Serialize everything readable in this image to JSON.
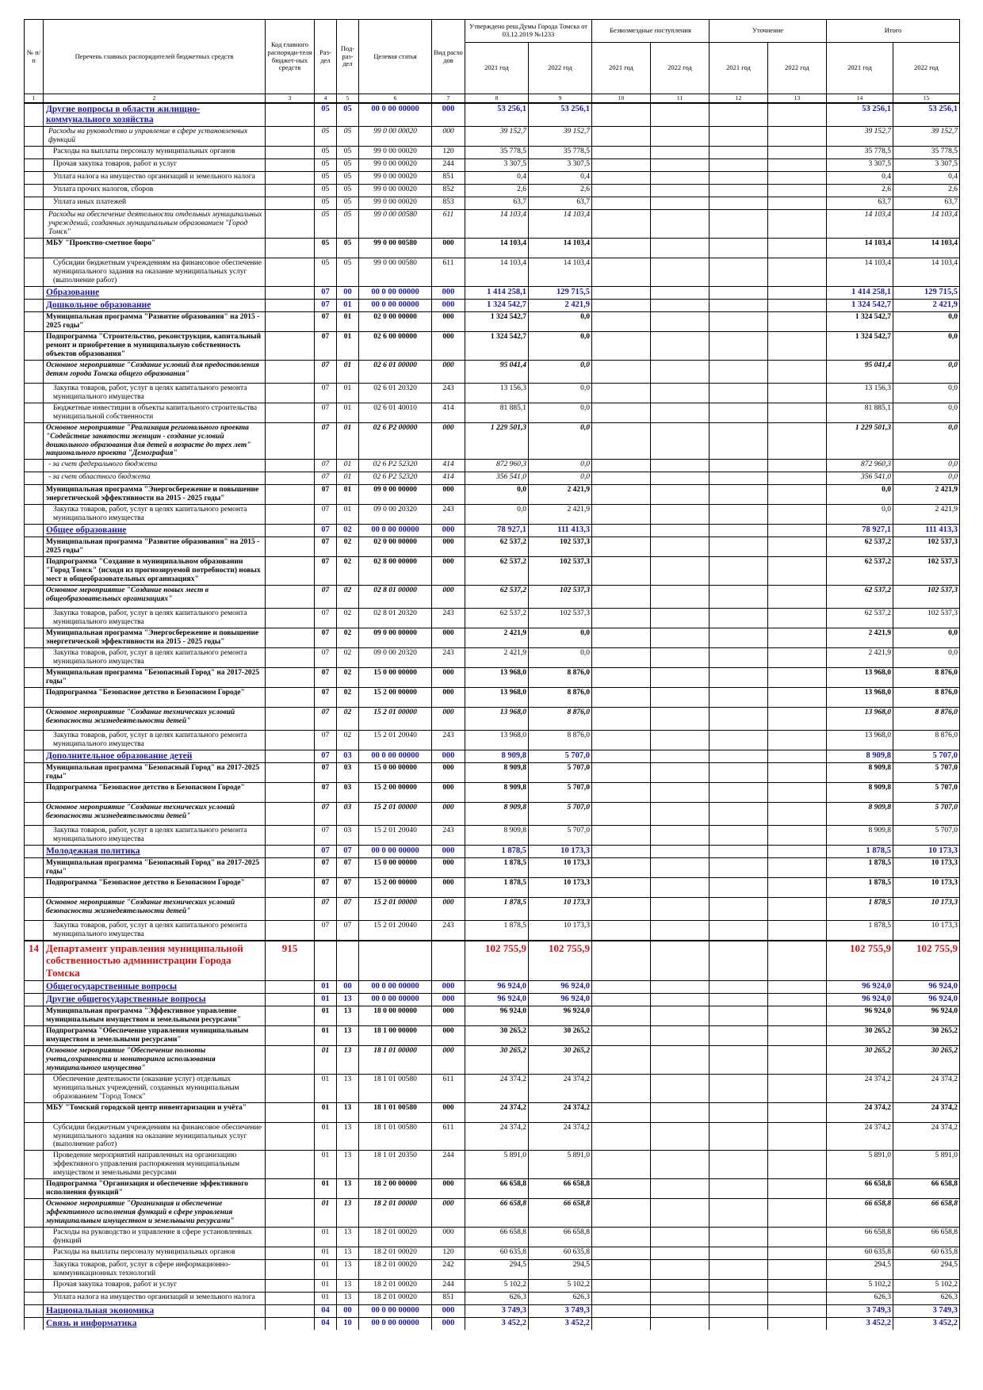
{
  "table": {
    "header": {
      "num": "№ п/п",
      "name": "Перечень главных распорядителей бюджетных средств",
      "code": "Код главного распоряди-теля бюджет-ных средств",
      "razdel": "Раз-дел",
      "podrazdel": "Под-раз-дел",
      "target": "Целевая статья",
      "vid": "Вид расхо дов",
      "groups": [
        "Утверждено реш.Думы Города Томска от 03.12.2019 №1233",
        "Безвозмездные поступления",
        "Уточнение",
        "Итого"
      ],
      "years": [
        "2021 год",
        "2022 год",
        "2021 год",
        "2022 год",
        "2021 год",
        "2022 год",
        "2021 год",
        "2022 год"
      ]
    },
    "column_numbers": [
      1,
      2,
      3,
      4,
      5,
      6,
      7,
      8,
      9,
      10,
      11,
      12,
      13,
      14,
      15
    ],
    "row_styles": [
      "section",
      "italic",
      "plain",
      "plain",
      "plain",
      "plain",
      "plain",
      "italic",
      "bold",
      "plain",
      "section",
      "section",
      "bold",
      "bold",
      "bold-italic",
      "plain",
      "plain",
      "bold-italic",
      "italic",
      "italic",
      "bold",
      "plain",
      "section",
      "bold",
      "bold",
      "bold-italic",
      "plain",
      "bold",
      "plain",
      "bold",
      "bold",
      "bold-italic",
      "plain",
      "section",
      "bold",
      "bold",
      "bold-italic",
      "plain",
      "section",
      "bold",
      "bold",
      "bold-italic",
      "plain",
      "dept",
      "section",
      "section",
      "bold",
      "bold",
      "bold-italic",
      "plain",
      "bold",
      "plain",
      "plain",
      "bold",
      "bold-italic",
      "plain",
      "plain",
      "plain",
      "plain",
      "plain",
      "section",
      "section"
    ],
    "rows": [
      [
        null,
        "Другие вопросы в области жилищно-коммунального хозяйства",
        null,
        "05",
        "05",
        "00 0 00 00000",
        "000",
        "53 256,1",
        "53 256,1",
        "53 256,1",
        "53 256,1"
      ],
      [
        null,
        "Расходы на руководство и управление в сфере установленных функций",
        null,
        "05",
        "05",
        "99 0 00 00020",
        "000",
        "39 152,7",
        "39 152,7",
        "39 152,7",
        "39 152,7"
      ],
      [
        null,
        "Расходы на выплаты персоналу муниципальных органов",
        null,
        "05",
        "05",
        "99 0 00 00020",
        "120",
        "35 778,5",
        "35 778,5",
        "35 778,5",
        "35 778,5"
      ],
      [
        null,
        "Прочая закупка товаров, работ и услуг",
        null,
        "05",
        "05",
        "99 0 00 00020",
        "244",
        "3 307,5",
        "3 307,5",
        "3 307,5",
        "3 307,5"
      ],
      [
        null,
        "Уплата налога на имущество организаций и земельного налога",
        null,
        "05",
        "05",
        "99 0 00 00020",
        "851",
        "0,4",
        "0,4",
        "0,4",
        "0,4"
      ],
      [
        null,
        "Уплата прочих налогов, сборов",
        null,
        "05",
        "05",
        "99 0 00 00020",
        "852",
        "2,6",
        "2,6",
        "2,6",
        "2,6"
      ],
      [
        null,
        "Уплата иных платежей",
        null,
        "05",
        "05",
        "99 0 00 00020",
        "853",
        "63,7",
        "63,7",
        "63,7",
        "63,7"
      ],
      [
        null,
        "Расходы на обеспечение деятельности отдельных муниципальных учреждений, созданных муниципальным образованием \"Город Томск\"",
        null,
        "05",
        "05",
        "99 0 00 00580",
        "611",
        "14 103,4",
        "14 103,4",
        "14 103,4",
        "14 103,4"
      ],
      [
        null,
        "МБУ \"Проектно-сметное бюро\"",
        null,
        "05",
        "05",
        "99 0 00 00580",
        "000",
        "14 103,4",
        "14 103,4",
        "14 103,4",
        "14 103,4"
      ],
      [
        null,
        "Субсидии бюджетным учреждениям на финансовое обеспечение муниципального задания на оказание муниципальных услуг (выполнение работ)",
        null,
        "05",
        "05",
        "99 0 00 00580",
        "611",
        "14 103,4",
        "14 103,4",
        "14 103,4",
        "14 103,4"
      ],
      [
        null,
        "Образование",
        null,
        "07",
        "00",
        "00 0 00 00000",
        "000",
        "1 414 258,1",
        "129 715,5",
        "1 414 258,1",
        "129 715,5"
      ],
      [
        null,
        "Дошкольное образование",
        null,
        "07",
        "01",
        "00 0 00 00000",
        "000",
        "1 324 542,7",
        "2 421,9",
        "1 324 542,7",
        "2 421,9"
      ],
      [
        null,
        "Муниципальная программа \"Развитие образования\" на 2015 - 2025 годы\"",
        null,
        "07",
        "01",
        "02 0 00 00000",
        "000",
        "1 324 542,7",
        "0,0",
        "1 324 542,7",
        "0,0"
      ],
      [
        null,
        "Подпрограмма \"Строительство, реконструкция, капитальный ремонт и приобретение в муниципальную собственность объектов образования\"",
        null,
        "07",
        "01",
        "02 6 00 00000",
        "000",
        "1 324 542,7",
        "0,0",
        "1 324 542,7",
        "0,0"
      ],
      [
        null,
        "Основное мероприятие \"Создание условий для предоставления детям города Томска общего образования\"",
        null,
        "07",
        "01",
        "02 6 01 00000",
        "000",
        "95 041,4",
        "0,0",
        "95 041,4",
        "0,0"
      ],
      [
        null,
        "Закупка товаров, работ, услуг в целях капитального ремонта муниципального имущества",
        null,
        "07",
        "01",
        "02 6 01 20320",
        "243",
        "13 156,3",
        "0,0",
        "13 156,3",
        "0,0"
      ],
      [
        null,
        "Бюджетные инвестиции в объекты капитального строительства муниципальной собственности",
        null,
        "07",
        "01",
        "02 6 01 40010",
        "414",
        "81 885,1",
        "0,0",
        "81 885,1",
        "0,0"
      ],
      [
        null,
        "Основное мероприятие \"Реализация регионального проекта \"Содействие занятости женщин - создание условий дошкольного образования для детей в возрасте до трех лет\" национального проекта \"Демография\"",
        null,
        "07",
        "01",
        "02 6 P2 00000",
        "000",
        "1 229 501,3",
        "0,0",
        "1 229 501,3",
        "0,0"
      ],
      [
        null,
        "- за счет федерального бюджета",
        null,
        "07",
        "01",
        "02 6 P2 52320",
        "414",
        "872 960,3",
        "0,0",
        "872 960,3",
        "0,0"
      ],
      [
        null,
        "- за счет областного бюджета",
        null,
        "07",
        "01",
        "02 6 P2 52320",
        "414",
        "356 541,0",
        "0,0",
        "356 541,0",
        "0,0"
      ],
      [
        null,
        "Муниципальная программа \"Энергосбережение и повышение энергетической эффективности на 2015 - 2025 годы\"",
        null,
        "07",
        "01",
        "09 0 00 00000",
        "000",
        "0,0",
        "2 421,9",
        "0,0",
        "2 421,9"
      ],
      [
        null,
        "Закупка товаров, работ, услуг в целях капитального ремонта муниципального имущества",
        null,
        "07",
        "01",
        "09 0 00 20320",
        "243",
        "0,0",
        "2 421,9",
        "0,0",
        "2 421,9"
      ],
      [
        null,
        "Общее образование",
        null,
        "07",
        "02",
        "00 0 00 00000",
        "000",
        "78 927,1",
        "111 413,3",
        "78 927,1",
        "111 413,3"
      ],
      [
        null,
        "Муниципальная программа \"Развитие образования\" на 2015 - 2025 годы\"",
        null,
        "07",
        "02",
        "02 0 00 00000",
        "000",
        "62 537,2",
        "102 537,3",
        "62 537,2",
        "102 537,3"
      ],
      [
        null,
        "Подпрограмма \"Создание в муниципальном образовании \"Город Томск\" (исходя из прогнозируемой потребности) новых мест в общеобразовательных организациях\"",
        null,
        "07",
        "02",
        "02 8 00 00000",
        "000",
        "62 537,2",
        "102 537,3",
        "62 537,2",
        "102 537,3"
      ],
      [
        null,
        "Основное мероприятие \"Создание новых мест в общеобразовательных организациях\"",
        null,
        "07",
        "02",
        "02 8 01 00000",
        "000",
        "62 537,2",
        "102 537,3",
        "62 537,2",
        "102 537,3"
      ],
      [
        null,
        "Закупка товаров, работ, услуг в целях капитального ремонта муниципального имущества",
        null,
        "07",
        "02",
        "02 8 01 20320",
        "243",
        "62 537,2",
        "102 537,3",
        "62 537,2",
        "102 537,3"
      ],
      [
        null,
        "Муниципальная программа \"Энергосбережение и повышение энергетической эффективности на 2015 - 2025 годы\"",
        null,
        "07",
        "02",
        "09 0 00 00000",
        "000",
        "2 421,9",
        "0,0",
        "2 421,9",
        "0,0"
      ],
      [
        null,
        "Закупка товаров, работ, услуг в целях капитального ремонта муниципального имущества",
        null,
        "07",
        "02",
        "09 0 00 20320",
        "243",
        "2 421,9",
        "0,0",
        "2 421,9",
        "0,0"
      ],
      [
        null,
        "Муниципальная программа \"Безопасный Город\" на 2017-2025 годы\"",
        null,
        "07",
        "02",
        "15 0 00 00000",
        "000",
        "13 968,0",
        "8 876,0",
        "13 968,0",
        "8 876,0"
      ],
      [
        null,
        "Подпрограмма \"Безопасное детство в Безопасном Городе\"",
        null,
        "07",
        "02",
        "15 2 00 00000",
        "000",
        "13 968,0",
        "8 876,0",
        "13 968,0",
        "8 876,0"
      ],
      [
        null,
        "Основное мероприятие \"Создание технических условий безопасности жизнедеятельности детей\"",
        null,
        "07",
        "02",
        "15 2 01 00000",
        "000",
        "13 968,0",
        "8 876,0",
        "13 968,0",
        "8 876,0"
      ],
      [
        null,
        "Закупка товаров, работ, услуг в целях капитального ремонта муниципального имущества",
        null,
        "07",
        "02",
        "15 2 01 20040",
        "243",
        "13 968,0",
        "8 876,0",
        "13 968,0",
        "8 876,0"
      ],
      [
        null,
        "Дополнительное образование детей",
        null,
        "07",
        "03",
        "00 0 00 00000",
        "000",
        "8 909,8",
        "5 707,0",
        "8 909,8",
        "5 707,0"
      ],
      [
        null,
        "Муниципальная программа \"Безопасный Город\" на 2017-2025 годы\"",
        null,
        "07",
        "03",
        "15 0 00 00000",
        "000",
        "8 909,8",
        "5 707,0",
        "8 909,8",
        "5 707,0"
      ],
      [
        null,
        "Подпрограмма \"Безопасное детство в Безопасном Городе\"",
        null,
        "07",
        "03",
        "15 2 00 00000",
        "000",
        "8 909,8",
        "5 707,0",
        "8 909,8",
        "5 707,0"
      ],
      [
        null,
        "Основное мероприятие \"Создание технических условий безопасности жизнедеятельности детей\"",
        null,
        "07",
        "03",
        "15 2 01 00000",
        "000",
        "8 909,8",
        "5 707,0",
        "8 909,8",
        "5 707,0"
      ],
      [
        null,
        "Закупка товаров, работ, услуг в целях капитального ремонта муниципального имущества",
        null,
        "07",
        "03",
        "15 2 01 20040",
        "243",
        "8 909,8",
        "5 707,0",
        "8 909,8",
        "5 707,0"
      ],
      [
        null,
        "Молодежная политика",
        null,
        "07",
        "07",
        "00 0 00 00000",
        "000",
        "1 878,5",
        "10 173,3",
        "1 878,5",
        "10 173,3"
      ],
      [
        null,
        "Муниципальная программа \"Безопасный Город\" на 2017-2025 годы\"",
        null,
        "07",
        "07",
        "15 0 00 00000",
        "000",
        "1 878,5",
        "10 173,3",
        "1 878,5",
        "10 173,3"
      ],
      [
        null,
        "Подпрограмма \"Безопасное детство в Безопасном Городе\"",
        null,
        "07",
        "07",
        "15 2 00 00000",
        "000",
        "1 878,5",
        "10 173,3",
        "1 878,5",
        "10 173,3"
      ],
      [
        null,
        "Основное мероприятие \"Создание технических условий безопасности жизнедеятельности детей\"",
        null,
        "07",
        "07",
        "15 2 01 00000",
        "000",
        "1 878,5",
        "10 173,3",
        "1 878,5",
        "10 173,3"
      ],
      [
        null,
        "Закупка товаров, работ, услуг в целях капитального ремонта муниципального имущества",
        null,
        "07",
        "07",
        "15 2 01 20040",
        "243",
        "1 878,5",
        "10 173,3",
        "1 878,5",
        "10 173,3"
      ],
      [
        "14",
        "Департамент управления муниципальной собственностью администрации Города Томска",
        "915",
        null,
        null,
        null,
        null,
        "102 755,9",
        "102 755,9",
        "102 755,9",
        "102 755,9"
      ],
      [
        null,
        "Общегосударственные вопросы",
        null,
        "01",
        "00",
        "00 0 00 00000",
        "000",
        "96 924,0",
        "96 924,0",
        "96 924,0",
        "96 924,0"
      ],
      [
        null,
        "Другие общегосударственные вопросы",
        null,
        "01",
        "13",
        "00 0 00 00000",
        "000",
        "96 924,0",
        "96 924,0",
        "96 924,0",
        "96 924,0"
      ],
      [
        null,
        "Муниципальная программа \"Эффективное управление муниципальным имуществом и земельными ресурсами\"",
        null,
        "01",
        "13",
        "18 0 00 00000",
        "000",
        "96 924,0",
        "96 924,0",
        "96 924,0",
        "96 924,0"
      ],
      [
        null,
        "Подпрограмма \"Обеспечение управления муниципальным имуществом и земельными ресурсами\"",
        null,
        "01",
        "13",
        "18 1 00 00000",
        "000",
        "30 265,2",
        "30 265,2",
        "30 265,2",
        "30 265,2"
      ],
      [
        null,
        "Основное мероприятие \"Обеспечение полноты учета,сохранности и мониторинга использования муниципального имущества\"",
        null,
        "01",
        "13",
        "18 1 01 00000",
        "000",
        "30 265,2",
        "30 265,2",
        "30 265,2",
        "30 265,2"
      ],
      [
        null,
        "Обеспечение деятельности (оказание услуг) отдельных муниципальных учреждений, созданных муниципальным образованием \"Город Томск\"",
        null,
        "01",
        "13",
        "18 1 01 00580",
        "611",
        "24 374,2",
        "24 374,2",
        "24 374,2",
        "24 374,2"
      ],
      [
        null,
        "МБУ \"Томский городской центр инвентаризации и учёта\"",
        null,
        "01",
        "13",
        "18 1 01 00580",
        "000",
        "24 374,2",
        "24 374,2",
        "24 374,2",
        "24 374,2"
      ],
      [
        null,
        "Субсидии бюджетным учреждениям на финансовое обеспечение муниципального задания на оказание муниципальных услуг (выполнение работ)",
        null,
        "01",
        "13",
        "18 1 01 00580",
        "611",
        "24 374,2",
        "24 374,2",
        "24 374,2",
        "24 374,2"
      ],
      [
        null,
        "Проведение мероприятий направленных на организацию эффективного управления распоряжения муниципальным имуществом и земельными ресурсами",
        null,
        "01",
        "13",
        "18 1 01 20350",
        "244",
        "5 891,0",
        "5 891,0",
        "5 891,0",
        "5 891,0"
      ],
      [
        null,
        "Подпрограмма \"Организация и обеспечение эффективного исполнения функций\"",
        null,
        "01",
        "13",
        "18 2 00 00000",
        "000",
        "66 658,8",
        "66 658,8",
        "66 658,8",
        "66 658,8"
      ],
      [
        null,
        "Основное мероприятие \"Организация и обеспечение эффективного исполнения функций в сфере управления муниципальным имуществом и земельными ресурсами\"",
        null,
        "01",
        "13",
        "18 2 01 00000",
        "000",
        "66 658,8",
        "66 658,8",
        "66 658,8",
        "66 658,8"
      ],
      [
        null,
        "Расходы на руководство и управление в сфере установленных функций",
        null,
        "01",
        "13",
        "18 2 01 00020",
        "000",
        "66 658,8",
        "66 658,8",
        "66 658,8",
        "66 658,8"
      ],
      [
        null,
        "Расходы на выплаты персоналу муниципальных органов",
        null,
        "01",
        "13",
        "18 2 01 00020",
        "120",
        "60 635,8",
        "60 635,8",
        "60 635,8",
        "60 635,8"
      ],
      [
        null,
        "Закупка товаров, работ, услуг в сфере информационно-коммуникационных технологий",
        null,
        "01",
        "13",
        "18 2 01 00020",
        "242",
        "294,5",
        "294,5",
        "294,5",
        "294,5"
      ],
      [
        null,
        "Прочая закупка товаров, работ и услуг",
        null,
        "01",
        "13",
        "18 2 01 00020",
        "244",
        "5 102,2",
        "5 102,2",
        "5 102,2",
        "5 102,2"
      ],
      [
        null,
        "Уплата налога на имущество организаций и земельного налога",
        null,
        "01",
        "13",
        "18 2 01 00020",
        "851",
        "626,3",
        "626,3",
        "626,3",
        "626,3"
      ],
      [
        null,
        "Национальная экономика",
        null,
        "04",
        "00",
        "00 0 00 00000",
        "000",
        "3 749,3",
        "3 749,3",
        "3 749,3",
        "3 749,3"
      ],
      [
        null,
        "Связь и информатика",
        null,
        "04",
        "10",
        "00 0 00 00000",
        "000",
        "3 452,2",
        "3 452,2",
        "3 452,2",
        "3 452,2"
      ]
    ]
  }
}
